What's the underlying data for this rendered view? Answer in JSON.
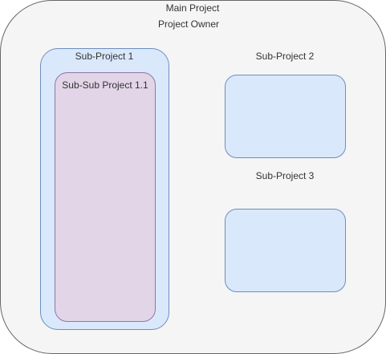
{
  "main_project": {
    "title": "Main Project",
    "owner": "Project Owner",
    "fill_color": "#f5f5f5",
    "stroke_color": "#666666"
  },
  "sub_projects": [
    {
      "label": "Sub-Project 1",
      "fill_color": "#dae8fc",
      "stroke_color": "#6c8ebf",
      "children": [
        {
          "label": "Sub-Sub Project 1.1",
          "fill_color": "#e1d5e7",
          "stroke_color": "#9673a6"
        }
      ]
    },
    {
      "label": "Sub-Project 2",
      "fill_color": "#dae8fc",
      "stroke_color": "#6c8ebf"
    },
    {
      "label": "Sub-Project 3",
      "fill_color": "#dae8fc",
      "stroke_color": "#6c8ebf"
    }
  ]
}
